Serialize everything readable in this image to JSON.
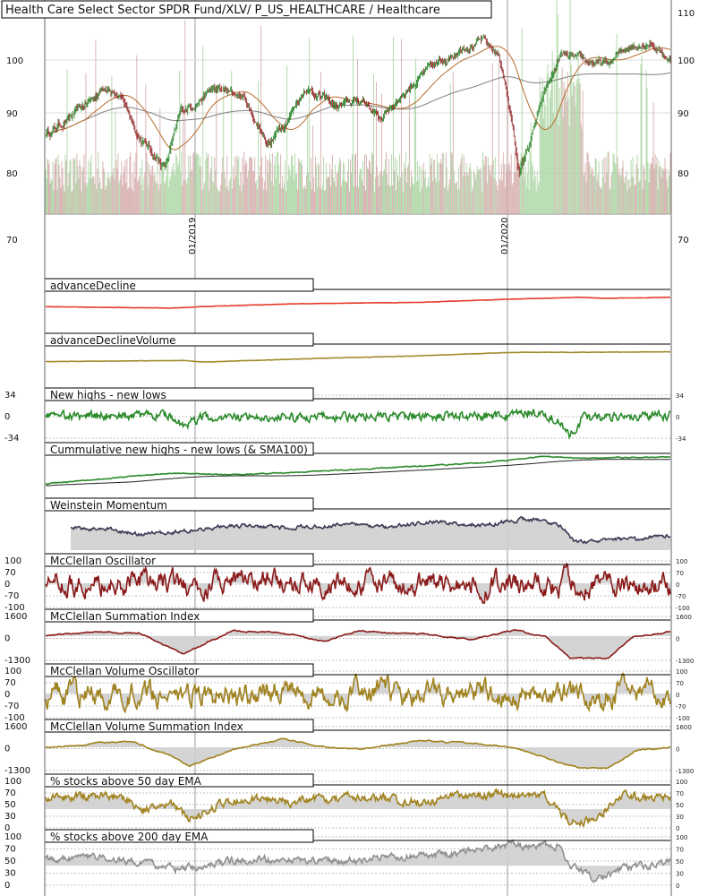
{
  "chart_data": {
    "type": "line",
    "title": "Health Care Select Sector SPDR Fund/XLV/ P_US_HEALTHCARE / Healthcare",
    "time_axis": {
      "labels": [
        "01/2019",
        "01/2020"
      ]
    },
    "price_panel": {
      "y_ticks_left": [
        "110",
        "100",
        "90",
        "80",
        "70"
      ],
      "y_ticks_right": [
        "110",
        "100",
        "90",
        "80",
        "70"
      ],
      "ylim": [
        70,
        110
      ],
      "series": [
        {
          "kind": "candlestick",
          "up_color": "#1a7a1a",
          "down_color": "#8b1a1a"
        },
        {
          "kind": "sma",
          "color": "#b86a2a"
        },
        {
          "kind": "sma",
          "color": "#808080"
        },
        {
          "kind": "volume",
          "up_color": "#a8d4a0",
          "down_color": "#d4a8a8"
        }
      ]
    },
    "panels": [
      {
        "title": "advanceDecline",
        "color": "#e53b2a",
        "ticks": [],
        "right_ticks": []
      },
      {
        "title": "advanceDeclineVolume",
        "color": "#a08a2a",
        "ticks": [],
        "right_ticks": []
      },
      {
        "title": "New highs - new lows",
        "color": "#2a8a2a",
        "ticks": [
          "34",
          "0",
          "-34"
        ],
        "right_ticks": [
          "34",
          "0",
          "-34"
        ]
      },
      {
        "title": "Cummulative new highs - new lows (& SMA100)",
        "color": "#2a8a2a",
        "color2": "#222222",
        "ticks": [],
        "right_ticks": []
      },
      {
        "title": "Weinstein Momentum",
        "color": "#3a3a55",
        "ticks": [],
        "right_ticks": []
      },
      {
        "title": "McClellan Oscillator",
        "color": "#8b1a1a",
        "ticks": [
          "100",
          "70",
          "0",
          "-70",
          "-100"
        ],
        "right_ticks": [
          "100",
          "70",
          "0",
          "-70",
          "-100"
        ]
      },
      {
        "title": "McClellan Summation Index",
        "color": "#8b1a1a",
        "ticks": [
          "1600",
          "0",
          "-1300"
        ],
        "right_ticks": [
          "1600",
          "0",
          "-1300"
        ]
      },
      {
        "title": "McClellan Volume Oscillator",
        "color": "#a0821e",
        "ticks": [
          "100",
          "70",
          "0",
          "-70",
          "-100"
        ],
        "right_ticks": [
          "100",
          "70",
          "0",
          "-70",
          "-100"
        ]
      },
      {
        "title": "McClellan Volume Summation Index",
        "color": "#a0821e",
        "ticks": [
          "1600",
          "0",
          "-1300"
        ],
        "right_ticks": [
          "1600",
          "0",
          "-1300"
        ]
      },
      {
        "title": "% stocks above 50 day EMA",
        "color": "#a0821e",
        "ticks": [
          "100",
          "70",
          "50",
          "30",
          "0"
        ],
        "right_ticks": [
          "100",
          "70",
          "50",
          "30",
          "0"
        ]
      },
      {
        "title": "% stocks above 200 day EMA",
        "color": "#909090",
        "ticks": [
          "100",
          "70",
          "50",
          "30",
          "0"
        ],
        "right_ticks": [
          "100",
          "70",
          "50",
          "30",
          "0"
        ]
      }
    ]
  }
}
